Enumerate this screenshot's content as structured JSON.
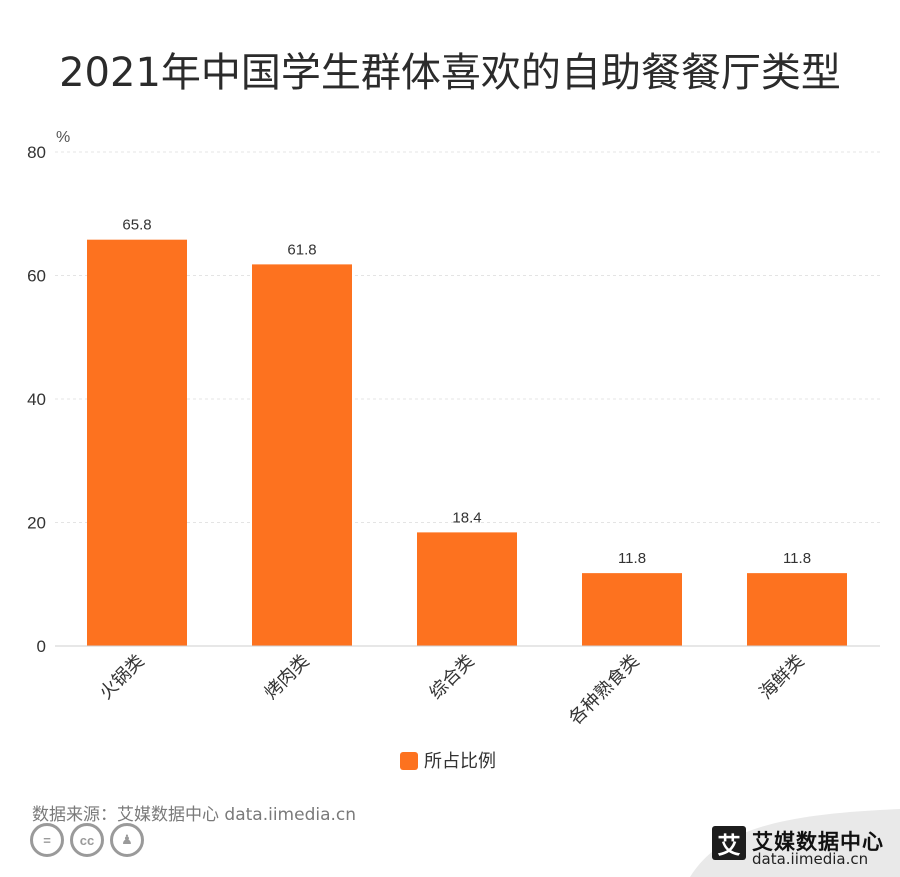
{
  "title": "2021年中国学生群体喜欢的自助餐餐厅类型",
  "chart_data": {
    "type": "bar",
    "categories": [
      "火锅类",
      "烤肉类",
      "综合类",
      "各种熟食类",
      "海鲜类"
    ],
    "series": [
      {
        "name": "所占比例",
        "values": [
          65.8,
          61.8,
          18.4,
          11.8,
          11.8
        ],
        "color": "#fd721f"
      }
    ],
    "ylabel": "%",
    "ylim": [
      0,
      80
    ],
    "yticks": [
      0,
      20,
      40,
      60,
      80
    ],
    "grid": true,
    "legend": "bottom-center"
  },
  "source": "数据来源：艾媒数据中心 data.iimedia.cn",
  "license_icons": [
    "equals-icon",
    "cc-icon",
    "person-icon"
  ],
  "logo": {
    "mark": "艾",
    "name": "艾媒数据中心",
    "url": "data.iimedia.cn"
  }
}
